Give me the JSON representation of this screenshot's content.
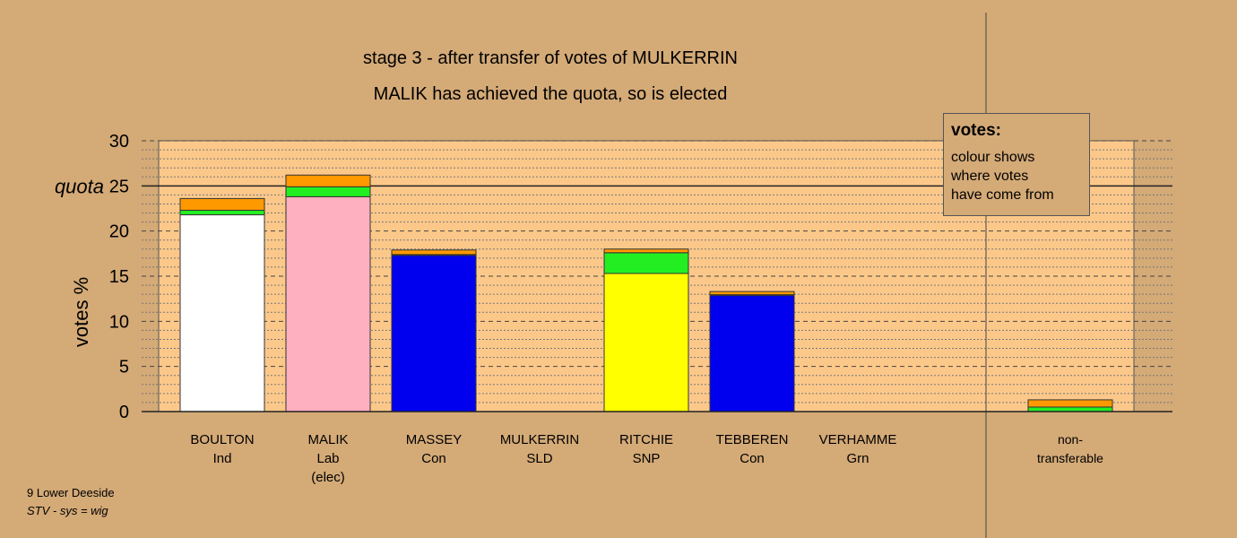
{
  "title": "stage 3 - after transfer of votes of MULKERRIN",
  "subtitle": "MALIK has achieved the quota, so is elected",
  "legend": {
    "heading": "votes:",
    "text": "colour shows\nwhere votes\nhave come from"
  },
  "footer": {
    "ward": "9 Lower Deeside",
    "system": "STV - sys = wig"
  },
  "colors": {
    "background": "#d4aa77",
    "plot_area": "#fcc88a",
    "Ind": "#ffffff",
    "Lab": "#ffb0c0",
    "Con": "#0000ee",
    "SNP": "#ffff00",
    "transfer_stage2": "#22ee22",
    "transfer_stage3": "#ff9900"
  },
  "chart_data": {
    "type": "bar",
    "stacked": true,
    "ylabel": "votes %",
    "ylim": [
      0,
      30
    ],
    "yticks": [
      0,
      5,
      10,
      15,
      20,
      25,
      30
    ],
    "quota": {
      "label": "quota",
      "value": 25
    },
    "grid": "dashed",
    "categories": [
      {
        "name": "BOULTON",
        "party": "Ind",
        "note": "",
        "segments": [
          {
            "color": "Ind",
            "value": 21.8
          },
          {
            "color": "transfer_stage2",
            "value": 0.5
          },
          {
            "color": "transfer_stage3",
            "value": 1.3
          }
        ]
      },
      {
        "name": "MALIK",
        "party": "Lab",
        "note": "(elec)",
        "segments": [
          {
            "color": "Lab",
            "value": 23.8
          },
          {
            "color": "transfer_stage2",
            "value": 1.1
          },
          {
            "color": "transfer_stage3",
            "value": 1.3
          }
        ]
      },
      {
        "name": "MASSEY",
        "party": "Con",
        "note": "",
        "segments": [
          {
            "color": "Con",
            "value": 17.3
          },
          {
            "color": "transfer_stage2",
            "value": 0.1
          },
          {
            "color": "transfer_stage3",
            "value": 0.5
          }
        ]
      },
      {
        "name": "MULKERRIN",
        "party": "SLD",
        "note": "",
        "segments": []
      },
      {
        "name": "RITCHIE",
        "party": "SNP",
        "note": "",
        "segments": [
          {
            "color": "SNP",
            "value": 15.3
          },
          {
            "color": "transfer_stage2",
            "value": 2.3
          },
          {
            "color": "transfer_stage3",
            "value": 0.4
          }
        ]
      },
      {
        "name": "TEBBEREN",
        "party": "Con",
        "note": "",
        "segments": [
          {
            "color": "Con",
            "value": 12.9
          },
          {
            "color": "transfer_stage2",
            "value": 0.05
          },
          {
            "color": "transfer_stage3",
            "value": 0.35
          }
        ]
      },
      {
        "name": "VERHAMME",
        "party": "Grn",
        "note": "",
        "segments": []
      },
      {
        "name": "non-",
        "party": "transferable",
        "note": "",
        "segments": [
          {
            "color": "transfer_stage2",
            "value": 0.5
          },
          {
            "color": "transfer_stage3",
            "value": 0.8
          }
        ]
      }
    ]
  }
}
